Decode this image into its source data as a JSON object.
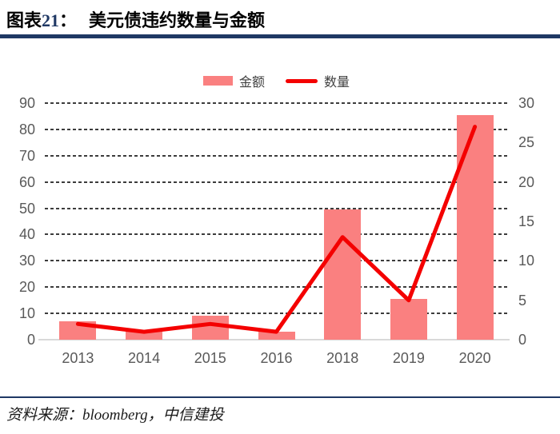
{
  "header": {
    "prefix": "图表",
    "number": "21",
    "colon": "：",
    "title": "美元债违约数量与金额"
  },
  "chart_data": {
    "type": "bar+line",
    "title": "美元债违约数量与金额",
    "categories": [
      "2013",
      "2014",
      "2015",
      "2016",
      "2018",
      "2019",
      "2020"
    ],
    "series": [
      {
        "name": "金额",
        "type": "bar",
        "axis": "left",
        "color": "#FA8080",
        "values": [
          7,
          3,
          9,
          3,
          49.5,
          15.5,
          85.5
        ]
      },
      {
        "name": "数量",
        "type": "line",
        "axis": "right",
        "color": "#F40000",
        "values": [
          2,
          1,
          2,
          1,
          13,
          5,
          27
        ]
      }
    ],
    "left_axis": {
      "min": 0,
      "max": 90,
      "step": 10,
      "ticks": [
        0,
        10,
        20,
        30,
        40,
        50,
        60,
        70,
        80,
        90
      ]
    },
    "right_axis": {
      "min": 0,
      "max": 30,
      "step": 5,
      "ticks": [
        0,
        5,
        10,
        15,
        20,
        25,
        30
      ]
    },
    "grid": "horizontal-dashed",
    "legend_position": "top-center"
  },
  "colors": {
    "bar": "#FA8080",
    "line": "#F40000",
    "accent_rule": "#1F3864",
    "grid": "#3C3C3C",
    "axis_line": "#D9D9D9",
    "tick_text": "#595959"
  },
  "source": {
    "text": "资料来源：bloomberg，中信建投"
  }
}
